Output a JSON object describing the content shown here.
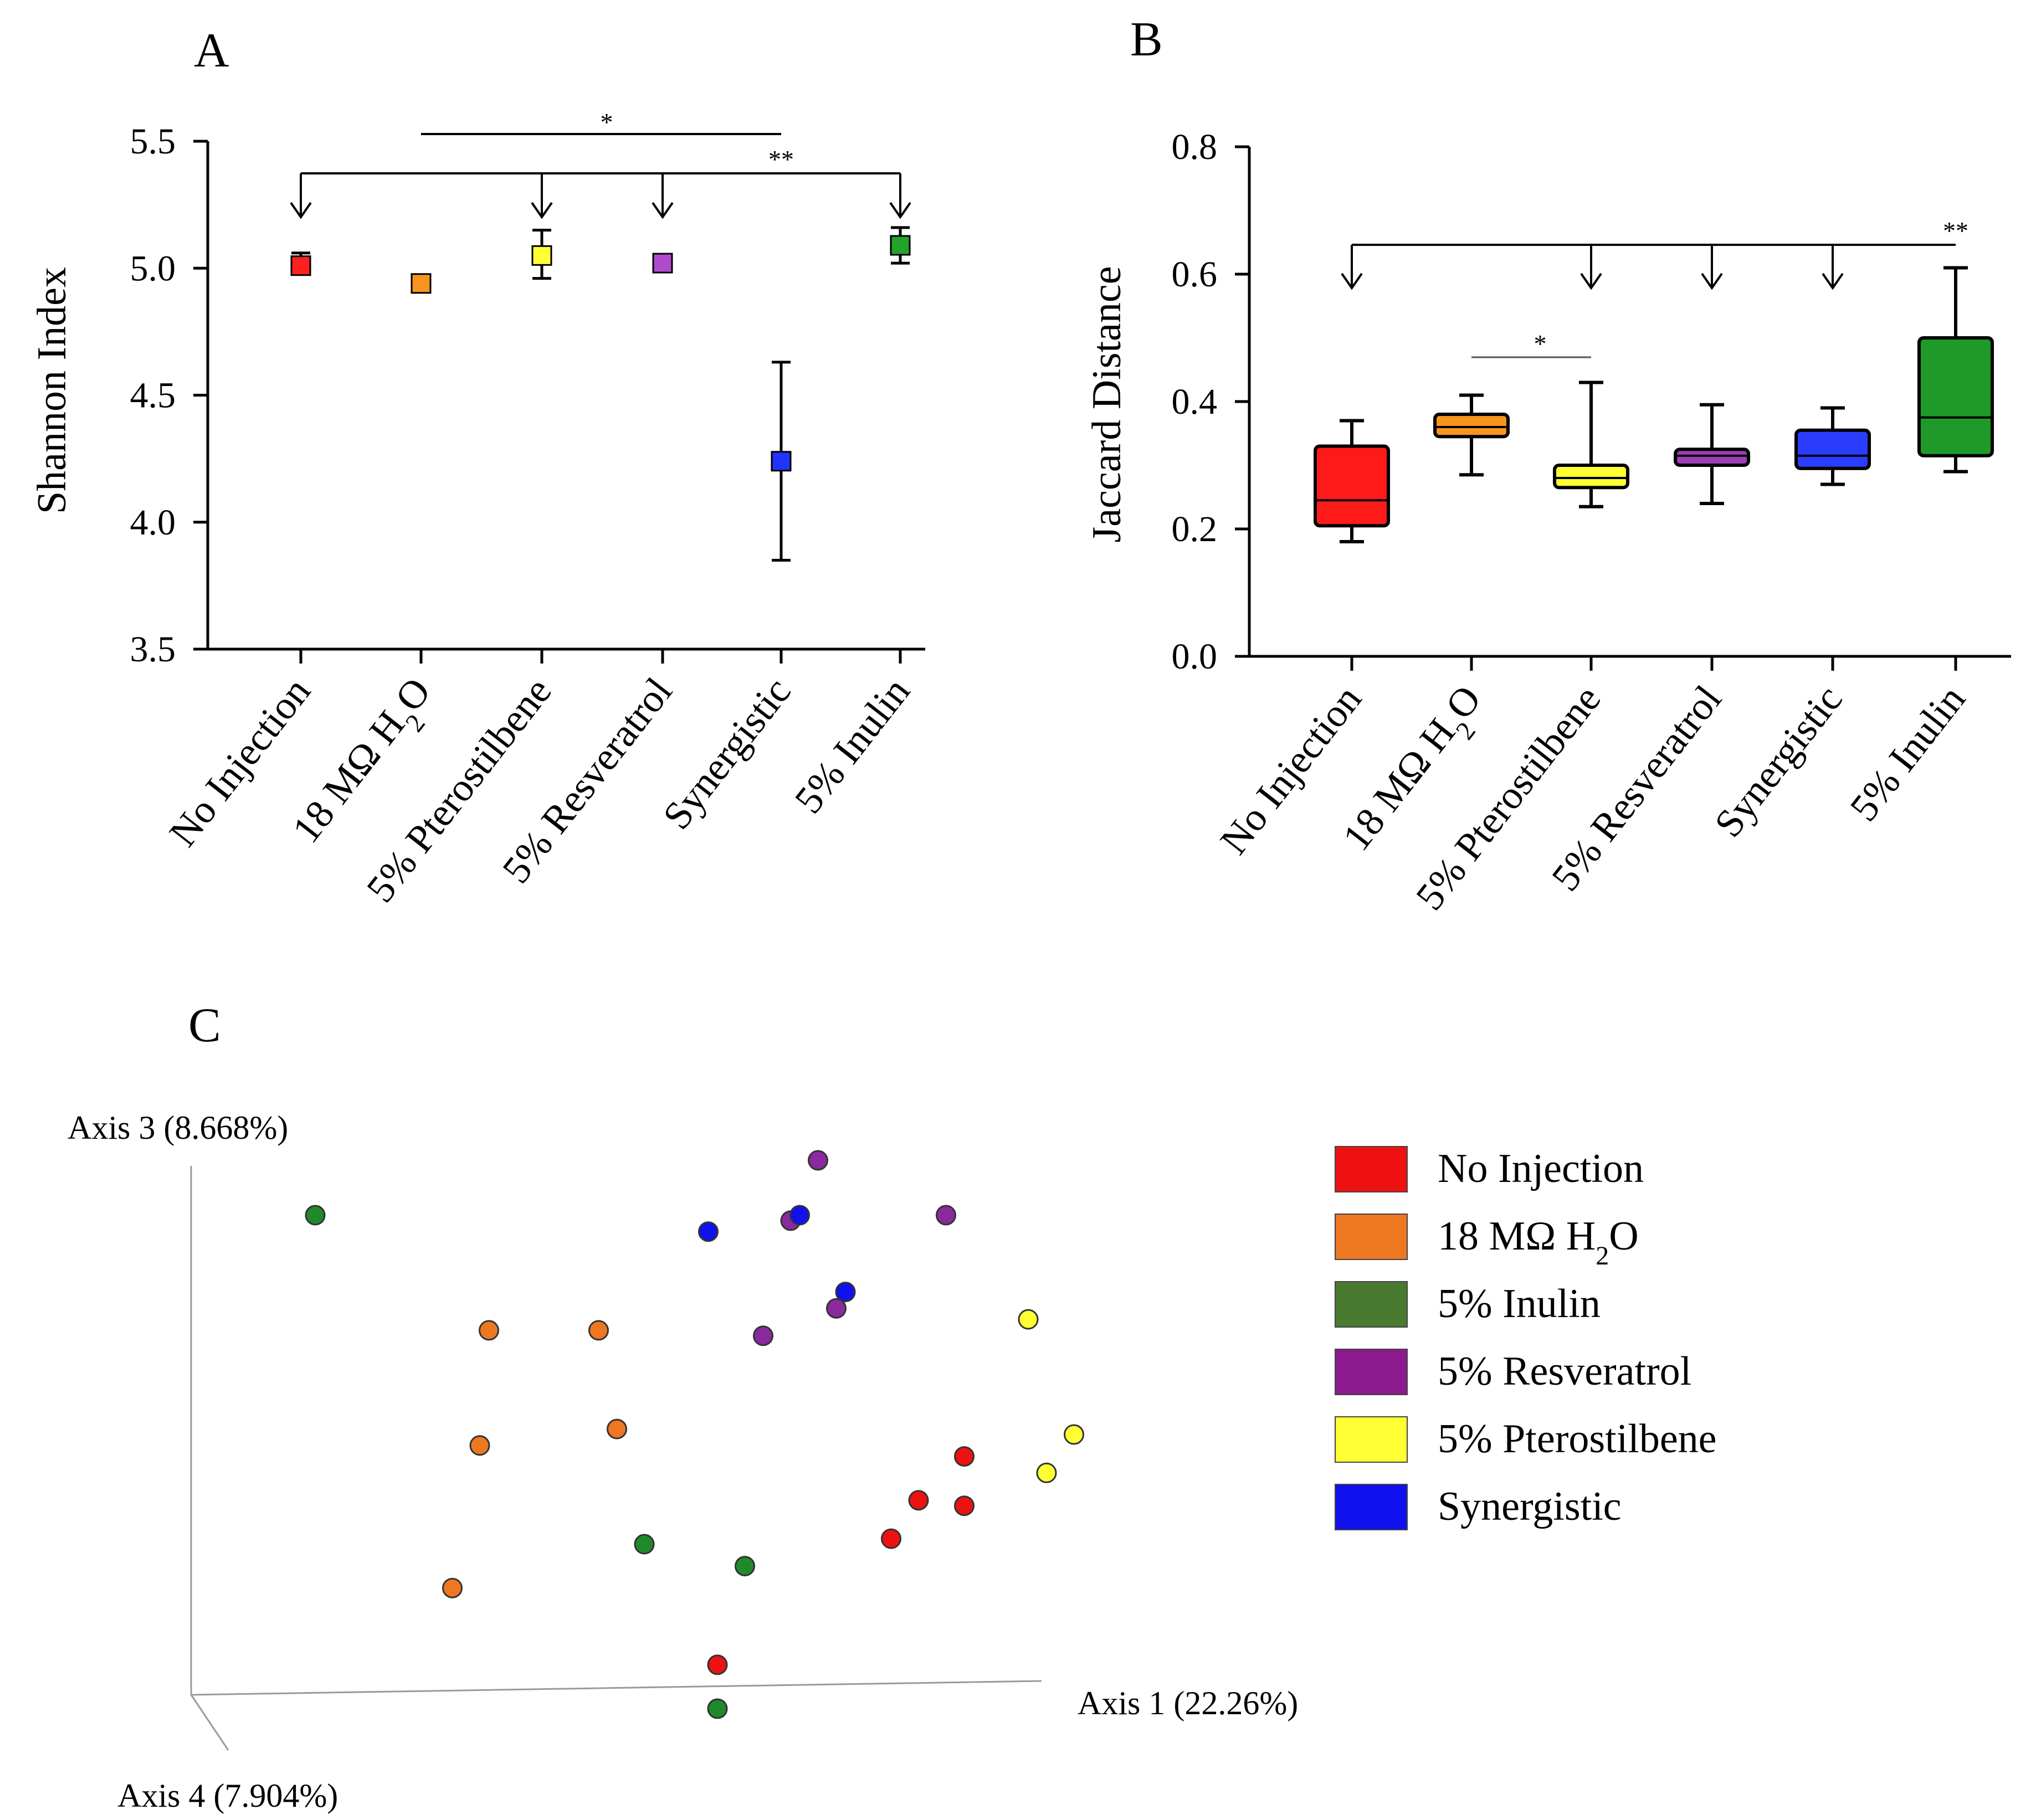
{
  "chart_data": [
    {
      "panel": "A",
      "type": "scatter",
      "subtype": "mean-with-error-bars",
      "ylabel": "Shannon Index",
      "ylim": [
        3.5,
        5.5
      ],
      "yticks": [
        "3.5",
        "4.0",
        "4.5",
        "5.0",
        "5.5"
      ],
      "categories": [
        "No Injection",
        "18 MΩ H2O",
        "5% Pterostilbene",
        "5% Resveratrol",
        "Synergistic",
        "5% Inulin"
      ],
      "category_sub": [
        "",
        "2",
        "",
        "",
        "",
        ""
      ],
      "values": [
        5.01,
        4.94,
        5.05,
        5.02,
        4.24,
        5.09
      ],
      "error_low": [
        4.98,
        4.92,
        4.96,
        4.99,
        3.85,
        5.02
      ],
      "error_high": [
        5.06,
        4.96,
        5.15,
        5.05,
        4.63,
        5.16
      ],
      "colors": [
        "#ff2020",
        "#f7941d",
        "#ffff33",
        "#b04bd0",
        "#2233ff",
        "#22a32a"
      ],
      "significance": [
        {
          "label": "*",
          "from": 1,
          "to": 4,
          "arrows": []
        },
        {
          "label": "**",
          "from": 0,
          "to": 5,
          "arrows": [
            0,
            2,
            3,
            5
          ]
        }
      ]
    },
    {
      "panel": "B",
      "type": "box",
      "ylabel": "Jaccard Distance",
      "ylim": [
        0.0,
        0.8
      ],
      "yticks": [
        "0.0",
        "0.2",
        "0.4",
        "0.6",
        "0.8"
      ],
      "categories": [
        "No Injection",
        "18 MΩ H2O",
        "5% Pterostilbene",
        "5% Resveratrol",
        "Synergistic",
        "5% Inulin"
      ],
      "category_sub": [
        "",
        "2",
        "",
        "",
        "",
        ""
      ],
      "boxes": [
        {
          "min": 0.18,
          "q1": 0.205,
          "median": 0.245,
          "q3": 0.33,
          "max": 0.37
        },
        {
          "min": 0.285,
          "q1": 0.345,
          "median": 0.36,
          "q3": 0.38,
          "max": 0.41
        },
        {
          "min": 0.235,
          "q1": 0.265,
          "median": 0.28,
          "q3": 0.3,
          "max": 0.43
        },
        {
          "min": 0.24,
          "q1": 0.3,
          "median": 0.315,
          "q3": 0.325,
          "max": 0.395
        },
        {
          "min": 0.27,
          "q1": 0.295,
          "median": 0.315,
          "q3": 0.355,
          "max": 0.39
        },
        {
          "min": 0.29,
          "q1": 0.315,
          "median": 0.375,
          "q3": 0.5,
          "max": 0.61
        }
      ],
      "colors": [
        "#ff1a1a",
        "#f7941d",
        "#ffff33",
        "#9b3fb5",
        "#2a3dff",
        "#1f9a2a"
      ],
      "significance": [
        {
          "label": "**",
          "from": 0,
          "to": 5,
          "arrows": [
            0,
            2,
            3,
            4
          ]
        },
        {
          "label": "*",
          "from": 1,
          "to": 2,
          "arrows": []
        }
      ]
    },
    {
      "panel": "C",
      "type": "scatter",
      "subtype": "pcoa-3d",
      "axes": {
        "axis1": "Axis 1 (22.26%)",
        "axis3": "Axis 3 (8.668%)",
        "axis4": "Axis 4 (7.904%)"
      },
      "legend": [
        {
          "label": "No Injection",
          "sub": "",
          "tail": "",
          "color": "#ee1111"
        },
        {
          "label": "18 MΩ H",
          "sub": "2",
          "tail": "O",
          "color": "#ee7722"
        },
        {
          "label": "5% Inulin",
          "sub": "",
          "tail": "",
          "color": "#4a7a30"
        },
        {
          "label": "5% Resveratrol",
          "sub": "",
          "tail": "",
          "color": "#8a1a8e"
        },
        {
          "label": "5% Pterostilbene",
          "sub": "",
          "tail": "",
          "color": "#ffff33"
        },
        {
          "label": "Synergistic",
          "sub": "",
          "tail": "",
          "color": "#1111ee"
        }
      ],
      "point_colors": {
        "No Injection": "#ee1111",
        "18 MΩ H2O": "#ee7722",
        "5% Inulin": "#1f8a2a",
        "5% Resveratrol": "#8a2a9e",
        "5% Pterostilbene": "#ffff33",
        "Synergistic": "#1111ee"
      },
      "points": [
        {
          "group": "5% Inulin",
          "x": 0.06,
          "y": 0.9
        },
        {
          "group": "5% Inulin",
          "x": 0.42,
          "y": 0.3
        },
        {
          "group": "5% Inulin",
          "x": 0.53,
          "y": 0.26
        },
        {
          "group": "5% Inulin",
          "x": 0.5,
          "y": 0.0
        },
        {
          "group": "18 MΩ H2O",
          "x": 0.25,
          "y": 0.69
        },
        {
          "group": "18 MΩ H2O",
          "x": 0.37,
          "y": 0.69
        },
        {
          "group": "18 MΩ H2O",
          "x": 0.24,
          "y": 0.48
        },
        {
          "group": "18 MΩ H2O",
          "x": 0.39,
          "y": 0.51
        },
        {
          "group": "18 MΩ H2O",
          "x": 0.21,
          "y": 0.22
        },
        {
          "group": "5% Resveratrol",
          "x": 0.61,
          "y": 1.0
        },
        {
          "group": "5% Resveratrol",
          "x": 0.58,
          "y": 0.89
        },
        {
          "group": "5% Resveratrol",
          "x": 0.75,
          "y": 0.9
        },
        {
          "group": "5% Resveratrol",
          "x": 0.63,
          "y": 0.73
        },
        {
          "group": "5% Resveratrol",
          "x": 0.55,
          "y": 0.68
        },
        {
          "group": "Synergistic",
          "x": 0.59,
          "y": 0.9
        },
        {
          "group": "Synergistic",
          "x": 0.49,
          "y": 0.87
        },
        {
          "group": "Synergistic",
          "x": 0.64,
          "y": 0.76
        },
        {
          "group": "5% Pterostilbene",
          "x": 0.84,
          "y": 0.71
        },
        {
          "group": "5% Pterostilbene",
          "x": 0.89,
          "y": 0.5
        },
        {
          "group": "5% Pterostilbene",
          "x": 0.86,
          "y": 0.43
        },
        {
          "group": "No Injection",
          "x": 0.77,
          "y": 0.46
        },
        {
          "group": "No Injection",
          "x": 0.72,
          "y": 0.38
        },
        {
          "group": "No Injection",
          "x": 0.77,
          "y": 0.37
        },
        {
          "group": "No Injection",
          "x": 0.69,
          "y": 0.31
        },
        {
          "group": "No Injection",
          "x": 0.5,
          "y": 0.08
        }
      ]
    }
  ]
}
